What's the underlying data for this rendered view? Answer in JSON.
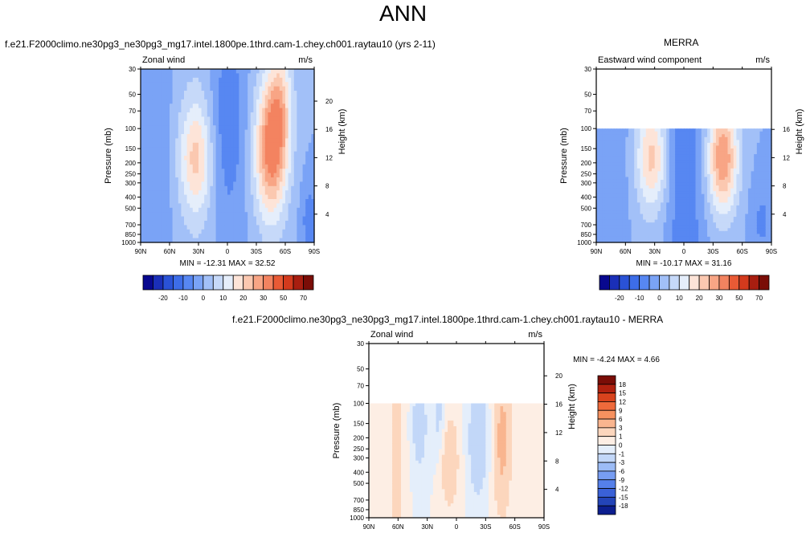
{
  "page": {
    "title": "ANN"
  },
  "chart_data": [
    {
      "type": "heatmap",
      "panel": "model",
      "title": "f.e21.F2000climo.ne30pg3_ne30pg3_mg17.intel.1800pe.1thrd.cam-1.chey.ch001.raytau10 (yrs 2-11)",
      "left_string": "Zonal wind",
      "right_string": "m/s",
      "ylabel": "Pressure (mb)",
      "y2label": "Height (km)",
      "xticks": [
        "90N",
        "60N",
        "30N",
        "0",
        "30S",
        "60S",
        "90S"
      ],
      "yticks": [
        30,
        50,
        70,
        100,
        150,
        200,
        250,
        300,
        400,
        500,
        700,
        850,
        1000
      ],
      "y2ticks": [
        4,
        8,
        12,
        16,
        20
      ],
      "ylim": [
        1000,
        30
      ],
      "xlim": [
        90,
        -90
      ],
      "y_scale": "log",
      "stats": "MIN = -12.31   MAX =  32.52",
      "colorbar": {
        "orientation": "horizontal",
        "labels": [
          "-20",
          "-10",
          "0",
          "10",
          "20",
          "30",
          "50",
          "70"
        ]
      }
    },
    {
      "type": "heatmap",
      "panel": "obs",
      "title": "MERRA",
      "left_string": "Eastward wind component",
      "right_string": "m/s",
      "ylabel": "Pressure (mb)",
      "y2label": "Height (km)",
      "xticks": [
        "90N",
        "60N",
        "30N",
        "0",
        "30S",
        "60S",
        "90S"
      ],
      "yticks": [
        30,
        50,
        70,
        100,
        150,
        200,
        250,
        300,
        400,
        500,
        700,
        850,
        1000
      ],
      "y2ticks": [
        4,
        8,
        12,
        16
      ],
      "ylim": [
        1000,
        30
      ],
      "xlim": [
        90,
        -90
      ],
      "y_scale": "log",
      "data_top_pressure": 100,
      "stats": "MIN = -10.17   MAX =  31.16",
      "colorbar": {
        "orientation": "horizontal",
        "labels": [
          "-20",
          "-10",
          "0",
          "10",
          "20",
          "30",
          "50",
          "70"
        ]
      }
    },
    {
      "type": "heatmap",
      "panel": "diff",
      "title": "f.e21.F2000climo.ne30pg3_ne30pg3_mg17.intel.1800pe.1thrd.cam-1.chey.ch001.raytau10 - MERRA",
      "left_string": "Zonal wind",
      "right_string": "m/s",
      "ylabel": "Pressure (mb)",
      "y2label": "Height (km)",
      "xticks": [
        "90N",
        "60N",
        "30N",
        "0",
        "30S",
        "60S",
        "90S"
      ],
      "yticks": [
        30,
        50,
        70,
        100,
        150,
        200,
        250,
        300,
        400,
        500,
        700,
        850,
        1000
      ],
      "y2ticks": [
        4,
        8,
        12,
        16,
        20
      ],
      "ylim": [
        1000,
        30
      ],
      "xlim": [
        90,
        -90
      ],
      "y_scale": "log",
      "data_top_pressure": 100,
      "stats": "MIN =  -4.24   MAX =   4.66",
      "colorbar": {
        "orientation": "vertical",
        "labels": [
          "18",
          "15",
          "12",
          "9",
          "6",
          "3",
          "1",
          "0",
          "-1",
          "-3",
          "-6",
          "-9",
          "-12",
          "-15",
          "-18"
        ]
      }
    }
  ],
  "colors": {
    "full_scale": [
      "#08088f",
      "#1a2fb8",
      "#2a52d6",
      "#3d6de8",
      "#5787f2",
      "#7aa3f6",
      "#a2c0f8",
      "#c6d9f9",
      "#e5eefb",
      "#fde4d8",
      "#fbc8b0",
      "#f8a585",
      "#f38360",
      "#e95a35",
      "#d33a1d",
      "#a81e10",
      "#7a0d07"
    ],
    "diff_scale": [
      "#7a0d07",
      "#b0210f",
      "#d8431d",
      "#ef6a3b",
      "#f6915f",
      "#f9b58f",
      "#fcd6bd",
      "#fdeee4",
      "#e4eefb",
      "#c2d7f8",
      "#9cbcf6",
      "#779df2",
      "#5580ea",
      "#3a61d7",
      "#2344b8",
      "#0c1e8f"
    ]
  }
}
